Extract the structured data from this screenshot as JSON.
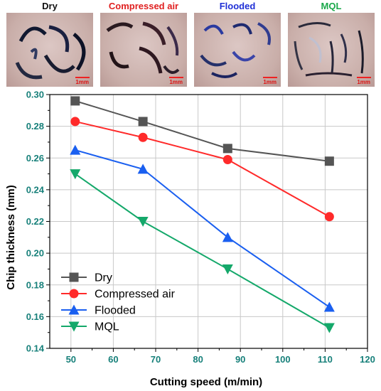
{
  "panels": [
    {
      "label": "Dry",
      "color": "#111111",
      "scale": "1mm"
    },
    {
      "label": "Compressed air",
      "color": "#e02020",
      "scale": "1mm"
    },
    {
      "label": "Flooded",
      "color": "#1f2fd6",
      "scale": "1mm"
    },
    {
      "label": "MQL",
      "color": "#1aa84a",
      "scale": "1mm"
    }
  ],
  "chart_data": {
    "type": "line",
    "xlabel": "Cutting speed (m/min)",
    "ylabel": "Chip thickness (mm)",
    "xlim": [
      45,
      120
    ],
    "ylim": [
      0.14,
      0.3
    ],
    "xticks": [
      "50",
      "60",
      "70",
      "80",
      "90",
      "100",
      "110",
      "120"
    ],
    "yticks": [
      "0.14",
      "0.16",
      "0.18",
      "0.20",
      "0.22",
      "0.24",
      "0.26",
      "0.28",
      "0.30"
    ],
    "x": [
      51,
      67,
      87,
      111
    ],
    "grid": true,
    "legend_position": "bottom-left",
    "series": [
      {
        "name": "Dry",
        "values": [
          0.296,
          0.283,
          0.266,
          0.258
        ],
        "color": "#555555",
        "marker": "square"
      },
      {
        "name": "Compressed air",
        "values": [
          0.283,
          0.273,
          0.259,
          0.223
        ],
        "color": "#ff2a2a",
        "marker": "circle"
      },
      {
        "name": "Flooded",
        "values": [
          0.265,
          0.253,
          0.21,
          0.166
        ],
        "color": "#1a5ff0",
        "marker": "triangle-up"
      },
      {
        "name": "MQL",
        "values": [
          0.25,
          0.22,
          0.19,
          0.153
        ],
        "color": "#14a86a",
        "marker": "triangle-down"
      }
    ]
  }
}
